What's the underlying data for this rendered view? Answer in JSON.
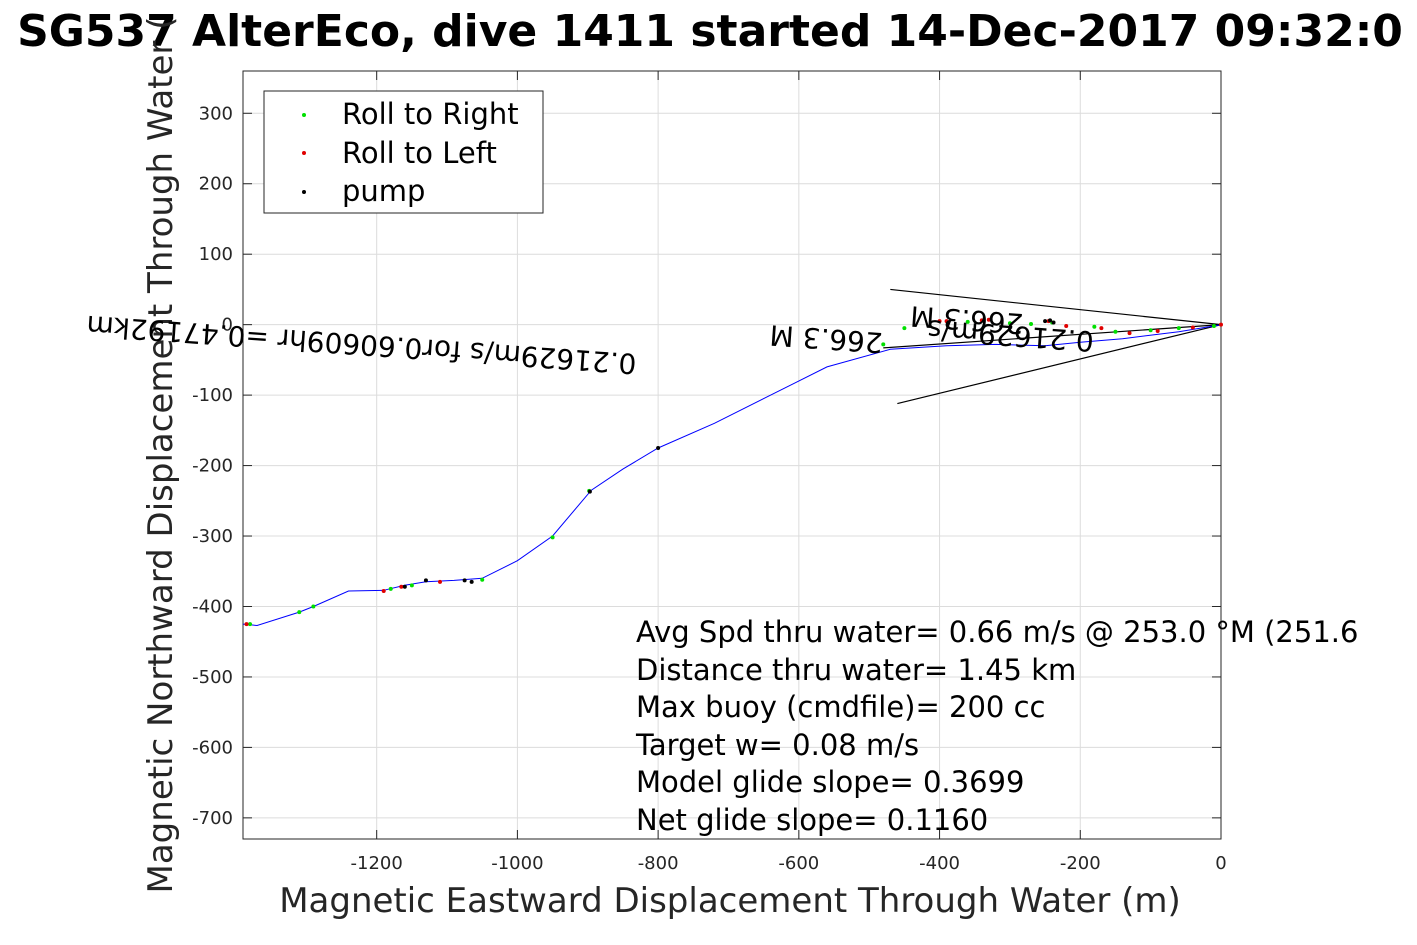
{
  "chart_data": {
    "type": "scatter",
    "title": "SG537 AlterEco, dive 1411 started 14-Dec-2017 09:32:0",
    "xlabel": "Magnetic Eastward Displacement Through Water (m)",
    "ylabel": "Magnetic Northward Displacement Through Water (",
    "xlim": [
      -1390,
      0
    ],
    "ylim": [
      -730,
      360
    ],
    "x_ticks": [
      -1200,
      -1000,
      -800,
      -600,
      -400,
      -200,
      0
    ],
    "y_ticks": [
      300,
      200,
      100,
      0,
      -100,
      -200,
      -300,
      -400,
      -500,
      -600,
      -700
    ],
    "x_tick_labels": [
      "-1200",
      "-1000",
      "-800",
      "-600",
      "-400",
      "-200",
      "0"
    ],
    "y_tick_labels": [
      "300",
      "200",
      "100",
      "0",
      "-100",
      "-200",
      "-300",
      "-400",
      "-500",
      "-600",
      "-700"
    ],
    "grid": true,
    "legend_position": "top-left",
    "legend": [
      {
        "name": "Roll to Right",
        "color": "#00e000"
      },
      {
        "name": "Roll to Left",
        "color": "#e00000"
      },
      {
        "name": "pump",
        "color": "#000000"
      }
    ],
    "track": {
      "color": "#0000ff",
      "x": [
        0,
        -60,
        -140,
        -200,
        -250,
        -320,
        -390,
        -470,
        -560,
        -650,
        -720,
        -800,
        -850,
        -895,
        -950,
        -1000,
        -1050,
        -1090,
        -1130,
        -1160,
        -1190,
        -1240,
        -1290,
        -1310,
        -1370,
        -1390
      ],
      "y": [
        0,
        -10,
        -20,
        -25,
        -30,
        -28,
        -30,
        -35,
        -60,
        -105,
        -140,
        -175,
        -205,
        -235,
        -300,
        -335,
        -360,
        -363,
        -365,
        -370,
        -377,
        -378,
        -400,
        -408,
        -427,
        -425
      ]
    },
    "roll_right": {
      "x": [
        -10,
        -60,
        -100,
        -150,
        -180,
        -240,
        -270,
        -300,
        -360,
        -450,
        -480,
        -950,
        -898,
        -1050,
        -1150,
        -1180,
        -1290,
        -1310,
        -1380
      ],
      "y": [
        -2,
        -5,
        -8,
        -10,
        -3,
        3,
        1,
        2,
        4,
        -5,
        -28,
        -302,
        -236,
        -362,
        -370,
        -375,
        -400,
        -408,
        -425
      ]
    },
    "roll_left": {
      "x": [
        0,
        -40,
        -90,
        -130,
        -170,
        -220,
        -245,
        -330,
        -340,
        -390,
        -400,
        -1110,
        -1165,
        -1190,
        -1385
      ],
      "y": [
        0,
        -4,
        -9,
        -12,
        -5,
        -2,
        5,
        7,
        6,
        5,
        5,
        -365,
        -372,
        -378,
        -425
      ]
    },
    "pump": {
      "x": [
        -250,
        -243,
        -238,
        -800,
        -897,
        -1075,
        -1065,
        -1130,
        -1160
      ],
      "y": [
        5,
        6,
        3,
        -175,
        -237,
        -363,
        -365,
        -363,
        -372
      ]
    },
    "current_lines": [
      {
        "x": [
          0,
          -470
        ],
        "y": [
          0,
          50
        ]
      },
      {
        "x": [
          0,
          -460
        ],
        "y": [
          0,
          -112
        ]
      },
      {
        "x": [
          0,
          -480
        ],
        "y": [
          0,
          -33
        ]
      }
    ],
    "annotations": [
      {
        "text": "0.21629m/s for0.60609hr =0.47192km",
        "x": -830,
        "y": -42,
        "rotation_deg": 184
      },
      {
        "text": "266.3 M",
        "x": -480,
        "y": -12,
        "rotation_deg": 184
      },
      {
        "text": "266.3 M",
        "x": -280,
        "y": 15,
        "rotation_deg": 184
      },
      {
        "text": "0.21629m/s",
        "x": -180,
        "y": -10,
        "rotation_deg": 184
      }
    ],
    "info_lines": [
      "Avg Spd thru water=  0.66 m/s @ 253.0 °M (251.6",
      "Distance thru water=  1.45 km",
      "Max buoy (cmdfile)= 200 cc",
      "Target w= 0.08 m/s",
      "Model glide slope= 0.3699",
      "Net glide slope= 0.1160"
    ]
  }
}
